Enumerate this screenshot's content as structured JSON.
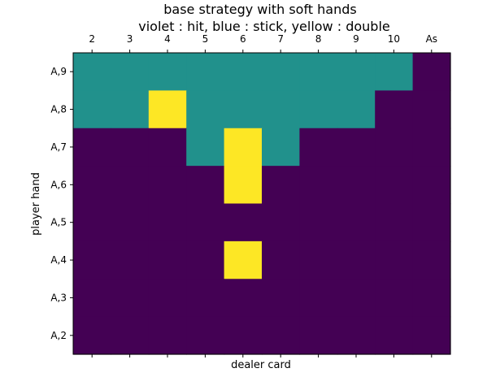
{
  "chart_data": {
    "type": "heatmap",
    "title": "base strategy with soft hands\nviolet : hit, blue : stick, yellow : double",
    "title_lines": [
      "base strategy with soft hands",
      "violet : hit, blue : stick, yellow : double"
    ],
    "xlabel": "dealer card",
    "ylabel": "player hand",
    "x_categories": [
      "2",
      "3",
      "4",
      "5",
      "6",
      "7",
      "8",
      "9",
      "10",
      "As"
    ],
    "y_categories": [
      "A,9",
      "A,8",
      "A,7",
      "A,6",
      "A,5",
      "A,4",
      "A,3",
      "A,2"
    ],
    "value_legend": {
      "0": "hit",
      "1": "stick",
      "2": "double"
    },
    "colors": {
      "0": "#440154",
      "1": "#21918c",
      "2": "#fde725"
    },
    "grid": false,
    "x_ticks_position": "top",
    "matrix": [
      [
        1,
        1,
        1,
        1,
        1,
        1,
        1,
        1,
        1,
        0
      ],
      [
        1,
        1,
        2,
        1,
        1,
        1,
        1,
        1,
        0,
        0
      ],
      [
        0,
        0,
        0,
        1,
        2,
        1,
        0,
        0,
        0,
        0
      ],
      [
        0,
        0,
        0,
        0,
        2,
        0,
        0,
        0,
        0,
        0
      ],
      [
        0,
        0,
        0,
        0,
        0,
        0,
        0,
        0,
        0,
        0
      ],
      [
        0,
        0,
        0,
        0,
        2,
        0,
        0,
        0,
        0,
        0
      ],
      [
        0,
        0,
        0,
        0,
        0,
        0,
        0,
        0,
        0,
        0
      ],
      [
        0,
        0,
        0,
        0,
        0,
        0,
        0,
        0,
        0,
        0
      ]
    ]
  }
}
